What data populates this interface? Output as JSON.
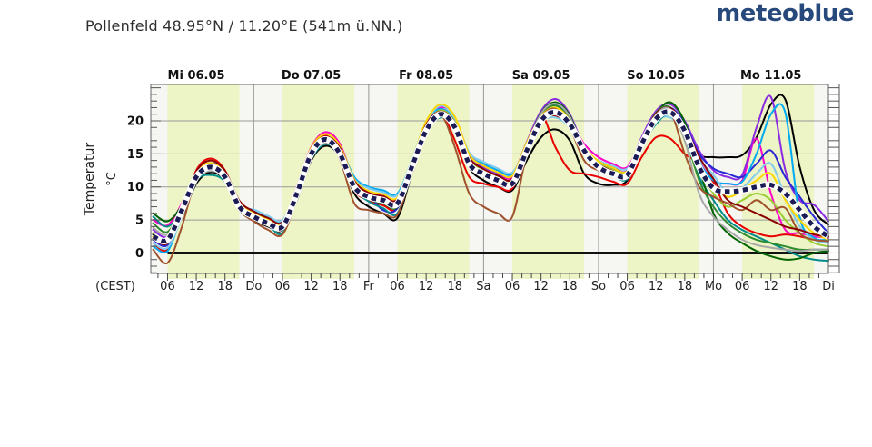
{
  "header": {
    "title": "Pollenfeld  48.95°N / 11.20°E (541m ü.NN.)",
    "brand": "meteoblue"
  },
  "chart_data": {
    "type": "line",
    "title": "Pollenfeld 48.95°N / 11.20°E (541m ü.NN.)",
    "ylabel": "Temperatur",
    "y_unit": "°C",
    "timezone": "(CEST)",
    "ylim": [
      -3.1,
      25.5
    ],
    "yticks": [
      0,
      5,
      10,
      15,
      20
    ],
    "y_minor_step": 1,
    "x_domain_hours": [
      2.5,
      144
    ],
    "x_hours": [
      3,
      6,
      9,
      12,
      15,
      18,
      21,
      24,
      27,
      30,
      33,
      36,
      39,
      42,
      45,
      48,
      51,
      54,
      57,
      60,
      63,
      66,
      69,
      72,
      75,
      78,
      81,
      84,
      87,
      90,
      93,
      96,
      99,
      102,
      105,
      108,
      111,
      114,
      117,
      120,
      123,
      126,
      129,
      132,
      135,
      138,
      141,
      144
    ],
    "day_labels": [
      "Mi 06.05",
      "Do 07.05",
      "Fr 08.05",
      "Sa 09.05",
      "So 10.05",
      "Mo 11.05"
    ],
    "midnight_labels": [
      "Do",
      "Fr",
      "Sa",
      "So",
      "Mo",
      "Di"
    ],
    "hour_tick_labels": [
      "06",
      "12",
      "18"
    ],
    "daylight_band": {
      "start_hour": 6,
      "end_hour": 21,
      "color": "#edf4c5"
    },
    "zero_line": 0,
    "grid_color": "#999999",
    "series": [
      {
        "name": "model-black",
        "color": "#000000",
        "values": [
          2.8,
          2.0,
          5.5,
          10.5,
          12.2,
          11.0,
          6.5,
          5.0,
          4.0,
          3.5,
          8.0,
          14.0,
          16.2,
          14.5,
          9.0,
          7.0,
          6.0,
          5.3,
          12.0,
          18.0,
          21.0,
          19.5,
          13.0,
          11.0,
          10.0,
          9.5,
          14.0,
          17.5,
          18.7,
          17.0,
          12.0,
          10.5,
          10.3,
          11.0,
          16.0,
          20.5,
          21.8,
          19.0,
          15.0,
          14.5,
          14.5,
          14.8,
          17.5,
          22.5,
          23.2,
          13.0,
          6.5,
          4.3
        ]
      },
      {
        "name": "model-red",
        "color": "#e80000",
        "values": [
          1.5,
          0.5,
          6.0,
          12.5,
          14.3,
          12.5,
          7.5,
          5.8,
          4.8,
          4.2,
          9.5,
          15.5,
          17.8,
          15.0,
          9.5,
          8.0,
          7.2,
          6.8,
          13.5,
          19.5,
          21.4,
          17.0,
          11.5,
          10.5,
          10.0,
          9.8,
          15.5,
          20.8,
          16.0,
          12.5,
          12.0,
          11.5,
          10.8,
          10.5,
          14.5,
          17.5,
          17.3,
          15.0,
          13.5,
          10.7,
          6.0,
          4.0,
          3.0,
          2.5,
          2.8,
          2.5,
          2.0,
          1.8
        ]
      },
      {
        "name": "model-magenta",
        "color": "#ff00c8",
        "values": [
          5.0,
          4.2,
          7.5,
          12.0,
          13.5,
          12.0,
          7.8,
          6.2,
          5.2,
          4.5,
          10.0,
          16.0,
          18.3,
          16.5,
          11.0,
          9.2,
          8.8,
          8.2,
          13.5,
          19.3,
          22.0,
          20.5,
          15.0,
          13.3,
          12.0,
          11.5,
          16.5,
          20.8,
          21.5,
          20.0,
          16.5,
          14.5,
          13.5,
          13.0,
          17.0,
          20.5,
          21.8,
          19.5,
          14.0,
          11.0,
          10.5,
          11.0,
          17.3,
          9.0,
          3.5,
          3.0,
          2.5,
          2.3
        ]
      },
      {
        "name": "model-purple",
        "color": "#8a2be2",
        "values": [
          3.5,
          2.5,
          6.8,
          11.5,
          13.0,
          11.8,
          7.2,
          5.8,
          4.8,
          4.2,
          9.2,
          15.0,
          17.0,
          15.5,
          10.5,
          9.0,
          8.5,
          8.0,
          13.0,
          19.0,
          21.5,
          20.0,
          14.5,
          13.0,
          12.0,
          11.8,
          16.8,
          21.5,
          23.3,
          21.0,
          16.0,
          13.8,
          13.0,
          12.5,
          17.5,
          21.5,
          22.5,
          20.0,
          15.5,
          12.5,
          11.5,
          11.8,
          19.0,
          23.6,
          12.5,
          8.0,
          7.3,
          4.8
        ]
      },
      {
        "name": "model-blue",
        "color": "#2a2ad4",
        "values": [
          2.0,
          1.2,
          6.2,
          11.8,
          13.6,
          12.2,
          7.4,
          6.0,
          5.0,
          4.4,
          9.4,
          15.2,
          17.2,
          15.2,
          10.2,
          8.8,
          6.5,
          6.8,
          12.8,
          18.8,
          21.2,
          19.2,
          13.8,
          12.2,
          11.2,
          10.8,
          16.0,
          20.5,
          21.2,
          19.8,
          15.8,
          13.5,
          12.8,
          12.2,
          16.8,
          20.8,
          22.0,
          19.5,
          15.0,
          12.8,
          12.0,
          11.5,
          13.5,
          15.5,
          11.5,
          8.5,
          5.5,
          3.0
        ]
      },
      {
        "name": "model-cyan",
        "color": "#00aaf0",
        "values": [
          1.0,
          0.3,
          5.8,
          11.2,
          12.8,
          11.5,
          7.6,
          6.4,
          5.4,
          4.8,
          9.8,
          15.8,
          17.5,
          16.0,
          11.5,
          10.0,
          9.5,
          9.0,
          14.0,
          19.8,
          21.8,
          20.0,
          14.8,
          13.5,
          12.5,
          12.0,
          16.2,
          20.2,
          21.0,
          19.2,
          15.2,
          13.2,
          12.2,
          11.8,
          16.2,
          19.8,
          21.0,
          18.8,
          13.8,
          11.0,
          10.5,
          10.8,
          15.0,
          21.0,
          21.2,
          5.5,
          2.3,
          2.0
        ]
      },
      {
        "name": "model-skyblue",
        "color": "#82cbec",
        "values": [
          1.5,
          0.8,
          5.5,
          11.0,
          12.5,
          11.2,
          7.0,
          6.6,
          5.6,
          5.0,
          9.6,
          15.4,
          17.3,
          15.8,
          11.2,
          9.8,
          9.2,
          8.8,
          13.8,
          19.6,
          22.3,
          20.3,
          15.2,
          13.8,
          12.8,
          12.2,
          16.0,
          19.8,
          20.5,
          19.0,
          15.6,
          14.0,
          13.2,
          12.8,
          16.5,
          20.0,
          20.5,
          18.2,
          14.2,
          11.8,
          9.0,
          9.8,
          12.0,
          13.5,
          8.5,
          4.0,
          2.0,
          1.5
        ]
      },
      {
        "name": "model-teal",
        "color": "#008b8b",
        "values": [
          5.5,
          4.0,
          6.5,
          11.0,
          11.8,
          10.8,
          6.8,
          5.2,
          4.2,
          3.0,
          8.5,
          14.2,
          16.5,
          14.8,
          9.8,
          7.8,
          6.8,
          6.0,
          12.2,
          18.2,
          20.5,
          18.8,
          13.2,
          11.8,
          10.8,
          10.2,
          15.8,
          21.0,
          22.5,
          20.5,
          15.0,
          12.8,
          11.8,
          11.2,
          16.0,
          19.5,
          21.0,
          17.5,
          11.5,
          8.0,
          5.0,
          3.5,
          2.5,
          1.5,
          0.5,
          -0.5,
          -1.0,
          -1.2
        ]
      },
      {
        "name": "model-darkgreen",
        "color": "#006400",
        "values": [
          6.0,
          4.8,
          7.2,
          11.6,
          12.5,
          11.4,
          7.1,
          5.4,
          4.4,
          3.8,
          8.8,
          14.6,
          16.8,
          15.2,
          10.2,
          8.2,
          7.5,
          7.0,
          12.6,
          18.6,
          21.2,
          19.4,
          13.6,
          12.1,
          11.1,
          10.6,
          16.2,
          21.2,
          22.8,
          20.8,
          15.4,
          13.1,
          12.1,
          11.6,
          16.6,
          21.0,
          22.8,
          19.8,
          13.0,
          6.0,
          3.0,
          1.5,
          0.3,
          -0.5,
          -1.0,
          -0.8,
          0.0,
          0.3
        ]
      },
      {
        "name": "model-green",
        "color": "#2e8b2e",
        "values": [
          4.5,
          3.2,
          6.9,
          11.3,
          12.8,
          11.6,
          7.3,
          5.6,
          4.6,
          4.1,
          9.1,
          14.9,
          17.0,
          15.4,
          10.4,
          8.6,
          7.8,
          7.4,
          12.9,
          18.9,
          21.3,
          19.6,
          13.9,
          12.3,
          11.3,
          10.9,
          16.4,
          20.9,
          22.3,
          20.2,
          15.7,
          13.3,
          12.3,
          11.9,
          16.9,
          21.2,
          22.0,
          18.0,
          11.0,
          7.0,
          4.5,
          3.0,
          2.0,
          1.5,
          1.0,
          0.5,
          0.5,
          0.5
        ]
      },
      {
        "name": "model-yellowgreen",
        "color": "#9acd32",
        "values": [
          3.0,
          2.0,
          6.6,
          11.9,
          13.2,
          11.9,
          7.4,
          5.7,
          4.7,
          4.3,
          9.3,
          15.3,
          17.6,
          15.6,
          10.6,
          9.0,
          8.3,
          7.9,
          13.2,
          19.2,
          21.6,
          19.8,
          14.2,
          12.5,
          11.5,
          11.1,
          16.1,
          20.6,
          21.8,
          19.9,
          15.9,
          13.6,
          12.6,
          12.1,
          16.4,
          20.2,
          21.3,
          18.4,
          12.5,
          9.0,
          7.0,
          8.0,
          9.0,
          8.0,
          5.0,
          3.0,
          1.5,
          1.0
        ]
      },
      {
        "name": "model-yellow",
        "color": "#ffd700",
        "values": [
          2.5,
          1.5,
          6.8,
          12.2,
          13.6,
          12.1,
          7.7,
          6.1,
          5.1,
          4.6,
          9.9,
          15.9,
          18.0,
          16.2,
          11.1,
          9.4,
          8.9,
          8.4,
          13.9,
          19.9,
          22.5,
          20.6,
          14.9,
          13.2,
          12.2,
          11.7,
          16.7,
          20.7,
          22.0,
          20.1,
          16.1,
          13.9,
          12.9,
          12.4,
          16.8,
          20.6,
          21.5,
          18.6,
          13.2,
          10.2,
          8.5,
          9.5,
          11.0,
          12.0,
          8.0,
          5.0,
          3.0,
          2.0
        ]
      },
      {
        "name": "model-brown",
        "color": "#a0522d",
        "values": [
          0.5,
          -1.5,
          4.0,
          11.4,
          13.4,
          11.7,
          6.6,
          4.8,
          3.5,
          2.8,
          8.2,
          14.4,
          17.4,
          14.2,
          7.5,
          6.5,
          6.0,
          5.8,
          12.4,
          18.4,
          21.0,
          16.0,
          9.0,
          7.0,
          6.0,
          5.5,
          15.0,
          20.4,
          21.8,
          19.0,
          14.0,
          12.5,
          12.0,
          11.5,
          16.3,
          20.0,
          21.3,
          15.0,
          10.0,
          8.5,
          7.5,
          6.5,
          8.0,
          6.5,
          6.8,
          3.0,
          2.0,
          1.8
        ]
      },
      {
        "name": "model-darkred",
        "color": "#8b0000",
        "values": [
          2.2,
          1.5,
          6.4,
          12.3,
          14.0,
          12.4,
          7.9,
          6.3,
          5.3,
          4.7,
          9.7,
          15.7,
          17.6,
          15.9,
          10.9,
          9.1,
          8.6,
          8.1,
          13.6,
          19.4,
          21.4,
          19.7,
          14.4,
          12.7,
          11.7,
          11.2,
          16.3,
          20.3,
          20.8,
          19.3,
          15.3,
          13.4,
          12.4,
          11.9,
          16.7,
          21.1,
          21.9,
          19.2,
          14.6,
          11.2,
          8.0,
          7.0,
          6.0,
          5.0,
          4.0,
          3.5,
          2.8,
          2.5
        ]
      },
      {
        "name": "model-gray",
        "color": "#a8a8a8",
        "values": [
          3.8,
          2.8,
          6.3,
          11.1,
          12.4,
          11.3,
          6.9,
          5.3,
          4.3,
          3.9,
          8.9,
          14.7,
          16.6,
          15.1,
          10.1,
          8.4,
          7.7,
          7.2,
          12.7,
          18.7,
          21.1,
          19.3,
          13.7,
          12.2,
          11.2,
          10.7,
          16.1,
          21.1,
          22.6,
          20.6,
          15.2,
          12.9,
          11.9,
          11.4,
          16.4,
          20.9,
          21.7,
          17.0,
          9.0,
          5.5,
          3.5,
          2.0,
          1.2,
          0.8,
          0.5,
          0.3,
          0.5,
          0.5
        ]
      }
    ],
    "mean": {
      "name": "multimodel-mean",
      "color": "#1b1b55",
      "dash": true,
      "values": [
        2.5,
        2.0,
        6.5,
        11.5,
        13.0,
        11.5,
        7.0,
        5.5,
        4.5,
        4.0,
        9.0,
        15.0,
        17.2,
        15.0,
        10.0,
        8.5,
        8.0,
        7.5,
        13.0,
        18.5,
        21.0,
        19.0,
        13.5,
        12.0,
        11.0,
        10.5,
        15.5,
        20.0,
        21.3,
        19.5,
        15.5,
        13.0,
        12.0,
        11.8,
        16.5,
        20.3,
        21.3,
        18.5,
        13.0,
        9.8,
        9.3,
        9.5,
        10.0,
        10.3,
        9.0,
        6.5,
        4.0,
        2.5
      ]
    }
  }
}
